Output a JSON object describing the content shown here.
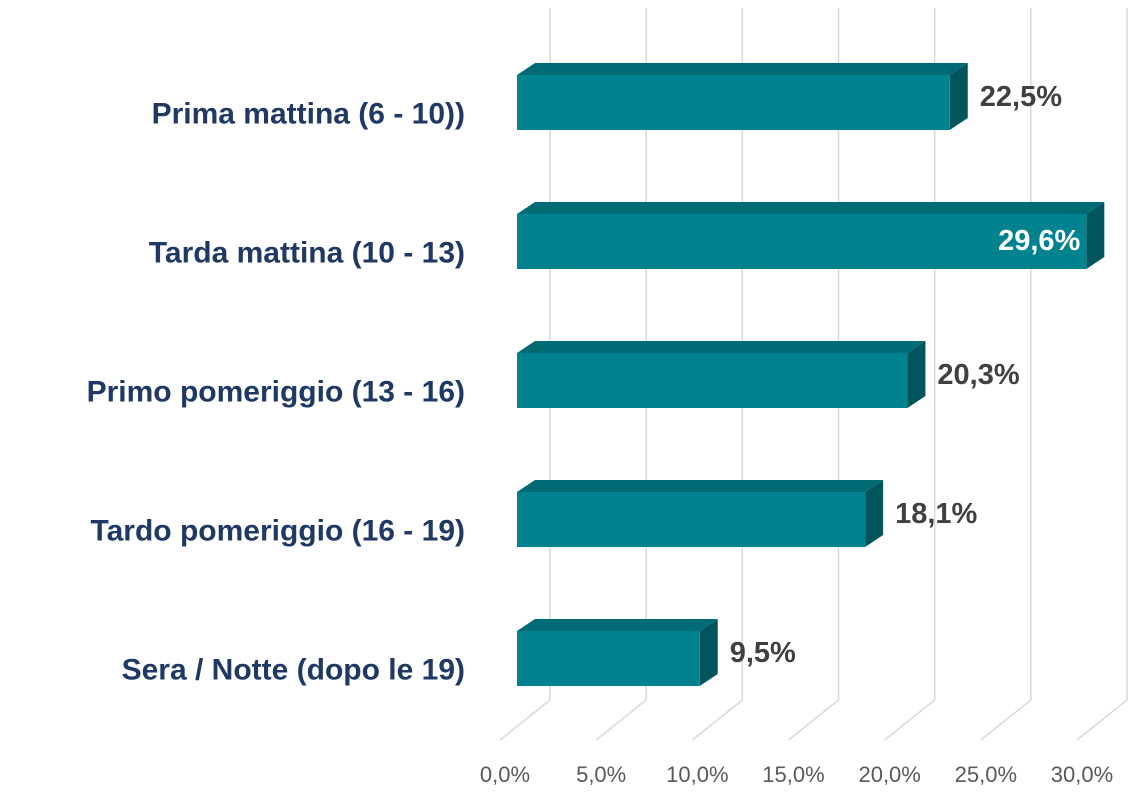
{
  "chart_data": {
    "type": "bar3d_horizontal",
    "categories": [
      "Prima mattina (6 - 10))",
      "Tarda mattina (10 - 13)",
      "Primo pomeriggio (13 - 16)",
      "Tardo pomeriggio (16 - 19)",
      "Sera / Notte (dopo le 19)"
    ],
    "values": [
      22.5,
      29.6,
      20.3,
      18.1,
      9.5
    ],
    "value_labels": [
      "22,5%",
      "29,6%",
      "20,3%",
      "18,1%",
      "9,5%"
    ],
    "color": "#00838f",
    "xlim": [
      0,
      30
    ],
    "xticks": [
      {
        "value": 0,
        "label": "0,0%"
      },
      {
        "value": 5,
        "label": "5,0%"
      },
      {
        "value": 10,
        "label": "10,0%"
      },
      {
        "value": 15,
        "label": "15,0%"
      },
      {
        "value": 20,
        "label": "20,0%"
      },
      {
        "value": 25,
        "label": "25,0%"
      },
      {
        "value": 30,
        "label": "30,0%"
      }
    ],
    "grid": true
  }
}
